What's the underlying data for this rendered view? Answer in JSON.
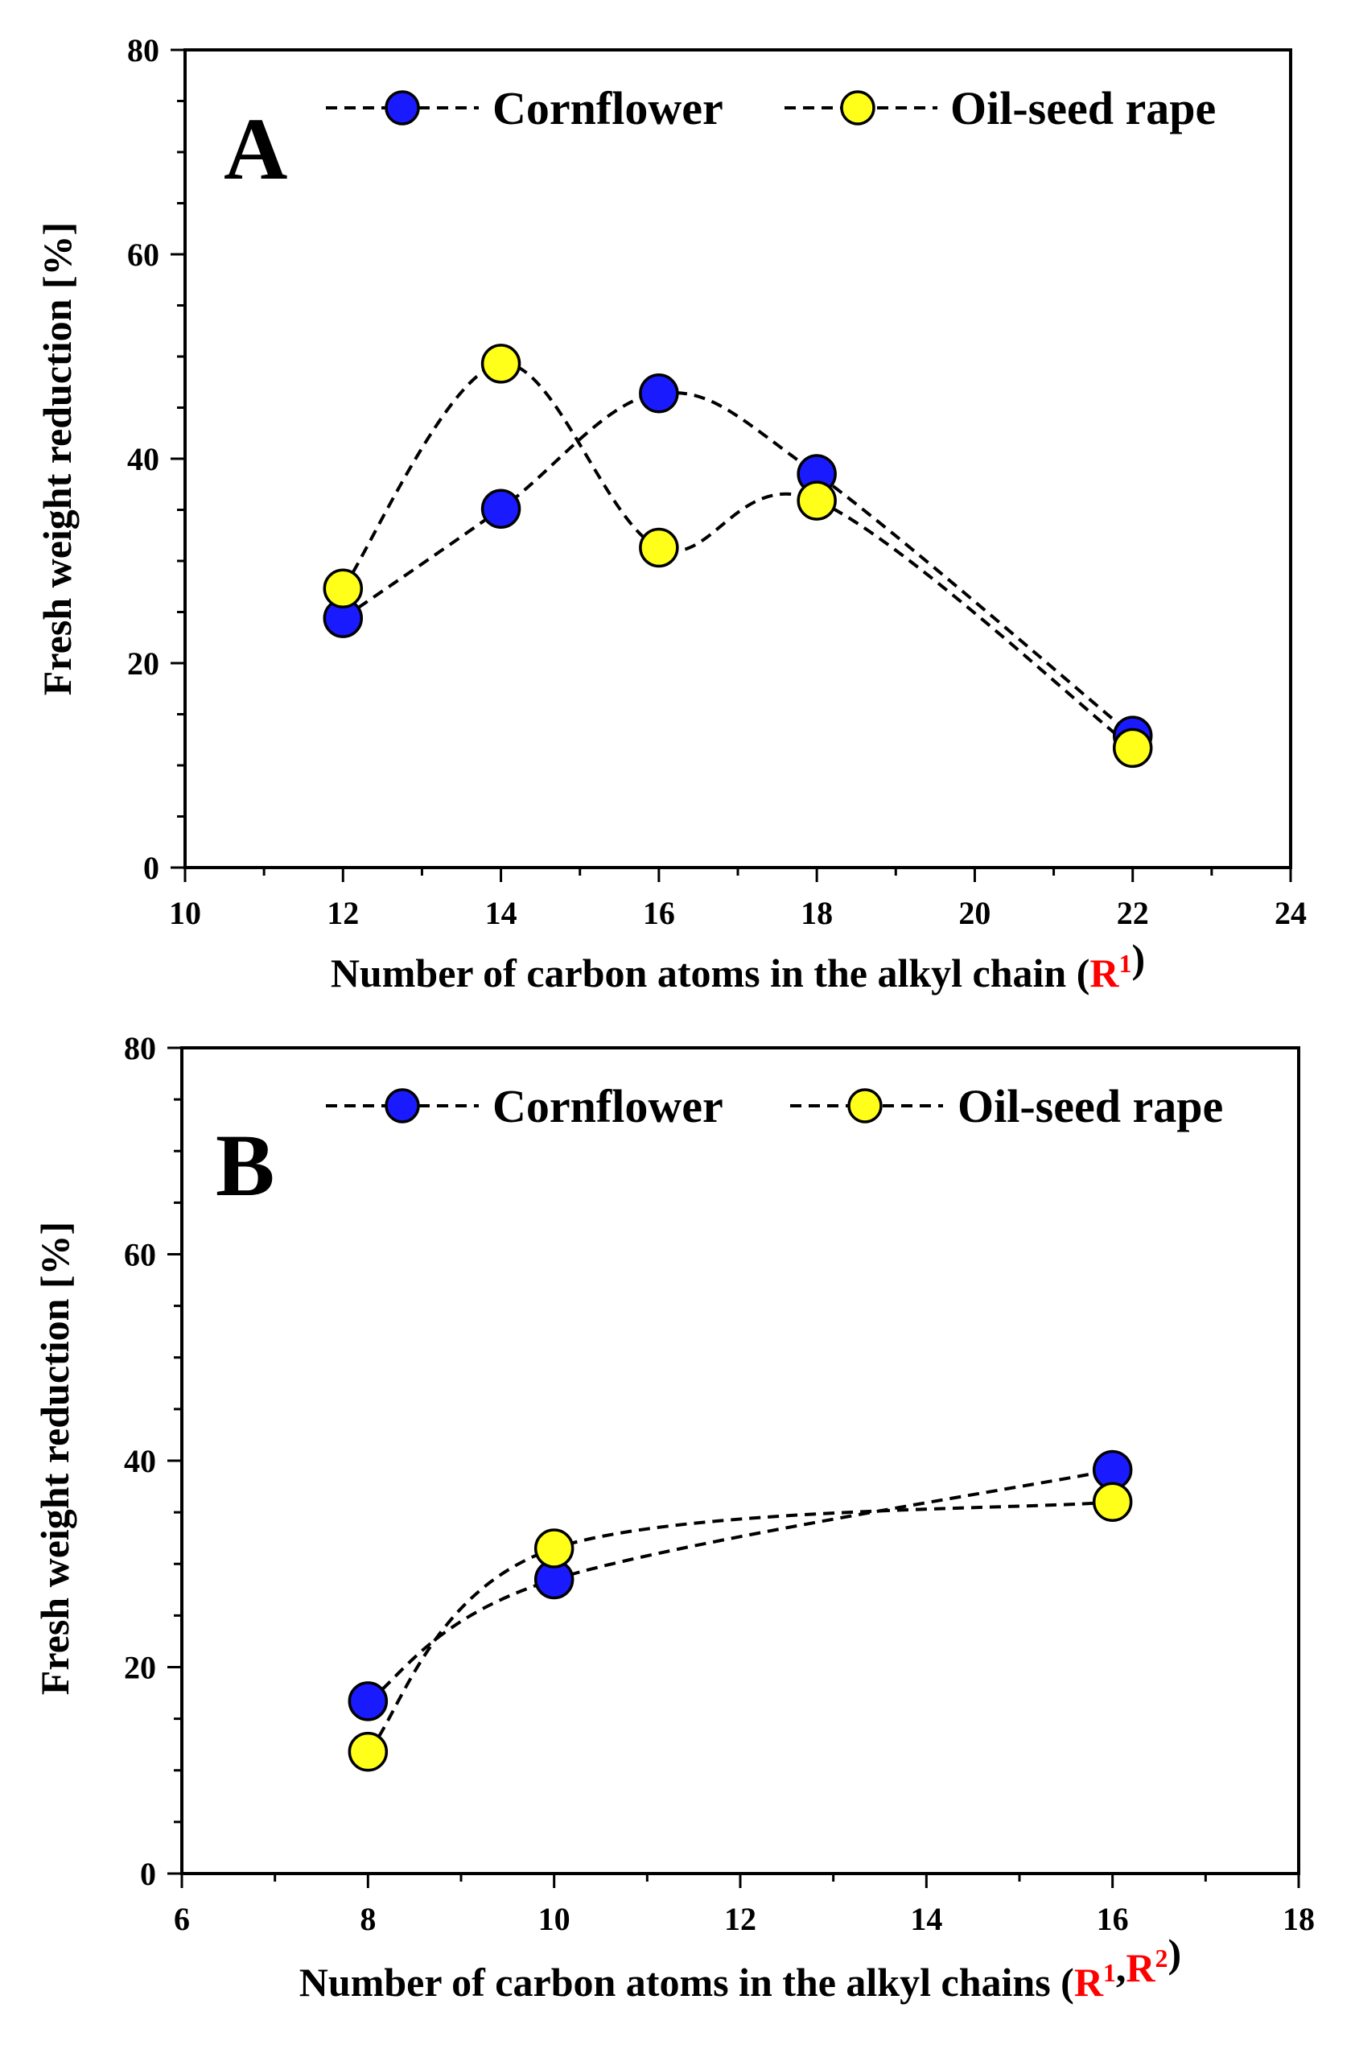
{
  "chart_data": [
    {
      "type": "line",
      "panel_label": "A",
      "title": "",
      "xlabel": "Number of carbon atoms in the alkyl chain (",
      "xlabel_highlight": [
        "R",
        "1"
      ],
      "xlabel_close": ")",
      "ylabel": "Fresh weight reduction [%]",
      "xlim": [
        10,
        24
      ],
      "ylim": [
        0,
        80
      ],
      "x_ticks": [
        "10",
        "12",
        "14",
        "16",
        "18",
        "20",
        "22",
        "24"
      ],
      "y_ticks": [
        "0",
        "20",
        "40",
        "60",
        "80"
      ],
      "legend_position": "top",
      "grid": false,
      "series": [
        {
          "name": "Cornflower",
          "color": "#1a1aff",
          "x": [
            12,
            14,
            16,
            18,
            22
          ],
          "values": [
            24.4,
            35.1,
            46.4,
            38.5,
            12.9
          ]
        },
        {
          "name": "Oil-seed rape",
          "color": "#ffff1a",
          "x": [
            12,
            14,
            16,
            18,
            22
          ],
          "values": [
            27.3,
            49.3,
            31.3,
            35.9,
            11.7
          ]
        }
      ]
    },
    {
      "type": "line",
      "panel_label": "B",
      "title": "",
      "xlabel": "Number of carbon atoms in the alkyl chains (",
      "xlabel_highlight": [
        "R",
        "1",
        ",",
        "R",
        "2"
      ],
      "xlabel_close": ")",
      "ylabel": "Fresh weight reduction [%]",
      "xlim": [
        6,
        18
      ],
      "ylim": [
        0,
        80
      ],
      "x_ticks": [
        "6",
        "8",
        "10",
        "12",
        "14",
        "16",
        "18"
      ],
      "y_ticks": [
        "0",
        "20",
        "40",
        "60",
        "80"
      ],
      "legend_position": "top",
      "grid": false,
      "series": [
        {
          "name": "Cornflower",
          "color": "#1a1aff",
          "x": [
            8,
            10,
            16
          ],
          "values": [
            16.7,
            28.5,
            39.1
          ]
        },
        {
          "name": "Oil-seed rape",
          "color": "#ffff1a",
          "x": [
            8,
            10,
            16
          ],
          "values": [
            11.8,
            31.5,
            36.0
          ]
        }
      ]
    }
  ],
  "colors": {
    "axis": "#000000",
    "highlight": "#ff0000"
  }
}
